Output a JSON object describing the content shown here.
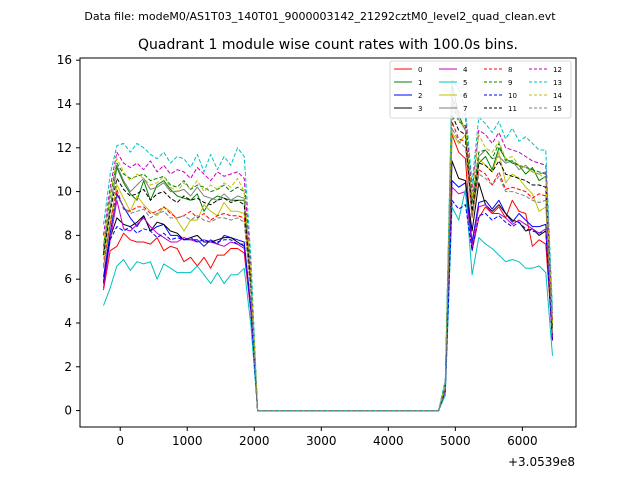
{
  "figure": {
    "suptitle": "Data file: modeM0/AS1T03_140T01_9000003142_21292cztM0_level2_quad_clean.evt"
  },
  "chart_data": {
    "type": "line",
    "title": "Quadrant 1 module wise count rates with 100.0s bins.",
    "xlabel": "",
    "ylabel": "",
    "x_offset_label": "+3.0539e8",
    "xlim": [
      -600,
      6800
    ],
    "ylim": [
      -0.75,
      16.1
    ],
    "xticks": [
      0,
      1000,
      2000,
      3000,
      4000,
      5000,
      6000
    ],
    "yticks": [
      0,
      2,
      4,
      6,
      8,
      10,
      12,
      14,
      16
    ],
    "grid": false,
    "legend": {
      "location": "upper right",
      "columns": 4
    },
    "x": [
      -250,
      -150,
      -50,
      50,
      150,
      250,
      350,
      450,
      550,
      650,
      750,
      850,
      950,
      1050,
      1150,
      1250,
      1350,
      1450,
      1550,
      1650,
      1750,
      1850,
      1950,
      2050,
      2150,
      4750,
      4850,
      4950,
      5050,
      5150,
      5250,
      5350,
      5450,
      5550,
      5650,
      5750,
      5850,
      5950,
      6050,
      6150,
      6250,
      6350,
      6450
    ],
    "series": [
      {
        "name": "0",
        "color": "#ff0000",
        "dash": false,
        "level": 7.6,
        "end": 3.3,
        "values": [
          5.5,
          7.3,
          7.5,
          8.1,
          7.8,
          7.7,
          7.7,
          7.6,
          7.9,
          7.3,
          7.5,
          7.4,
          6.8,
          7.0,
          6.6,
          7.0,
          6.5,
          7.1,
          7.1,
          7.4,
          7.4,
          7.2,
          4.5,
          0,
          0,
          0,
          1.0,
          12.6,
          11.8,
          11.5,
          7.3,
          8.8,
          9.3,
          9.0,
          9.3,
          8.8,
          9.6,
          9.1,
          9.0,
          7.5,
          7.8,
          7.6,
          3.3
        ]
      },
      {
        "name": "1",
        "color": "#008000",
        "dash": false,
        "level": 9.8,
        "end": 3.8,
        "values": [
          7.2,
          9.3,
          11.1,
          10.4,
          9.9,
          9.6,
          10.5,
          9.6,
          10.3,
          10.5,
          10.1,
          9.8,
          9.7,
          9.6,
          9.9,
          9.1,
          9.6,
          9.8,
          9.7,
          9.6,
          9.6,
          9.6,
          5.9,
          0,
          0,
          0,
          1.1,
          14.9,
          13.5,
          12.8,
          9.0,
          11.3,
          11.6,
          11.0,
          12.0,
          11.5,
          11.3,
          11.2,
          10.8,
          11.1,
          10.5,
          10.7,
          3.8
        ]
      },
      {
        "name": "2",
        "color": "#0000ff",
        "dash": false,
        "level": 8.4,
        "end": 3.2,
        "values": [
          6.1,
          8.1,
          9.9,
          9.3,
          8.8,
          8.4,
          8.9,
          8.2,
          8.4,
          8.5,
          8.0,
          8.0,
          7.8,
          7.8,
          7.8,
          7.5,
          7.8,
          7.6,
          8.0,
          7.9,
          7.8,
          7.7,
          4.7,
          0,
          0,
          0,
          0.9,
          10.5,
          10.2,
          10.4,
          7.7,
          9.5,
          9.6,
          9.2,
          9.6,
          9.0,
          8.6,
          9.0,
          8.7,
          8.4,
          8.4,
          8.5,
          3.2
        ]
      },
      {
        "name": "3",
        "color": "#000000",
        "dash": false,
        "level": 8.1,
        "end": 3.2,
        "values": [
          5.8,
          7.9,
          8.8,
          8.5,
          8.4,
          8.6,
          8.9,
          8.2,
          8.6,
          8.5,
          8.2,
          8.1,
          7.8,
          7.9,
          8.0,
          7.7,
          7.7,
          7.8,
          7.9,
          7.9,
          7.7,
          7.5,
          4.6,
          0,
          0,
          0,
          0.9,
          11.4,
          10.6,
          10.5,
          8.2,
          10.4,
          9.4,
          9.1,
          9.4,
          9.0,
          8.7,
          8.6,
          8.2,
          8.3,
          8.0,
          8.2,
          3.2
        ]
      },
      {
        "name": "4",
        "color": "#c000c0",
        "dash": false,
        "level": 8.2,
        "end": 3.3,
        "values": [
          5.6,
          7.8,
          9.6,
          8.3,
          8.2,
          8.5,
          8.8,
          8.4,
          8.1,
          7.9,
          7.7,
          7.7,
          7.9,
          7.8,
          7.7,
          7.8,
          7.7,
          7.6,
          7.5,
          7.7,
          7.6,
          7.4,
          4.5,
          0,
          0,
          0,
          0.9,
          10.2,
          9.9,
          10.0,
          7.5,
          9.3,
          9.4,
          9.0,
          9.0,
          8.8,
          8.5,
          8.7,
          8.5,
          8.3,
          8.1,
          8.3,
          3.3
        ]
      },
      {
        "name": "5",
        "color": "#00c0c0",
        "dash": false,
        "level": 6.3,
        "end": 2.5,
        "values": [
          4.8,
          5.6,
          6.6,
          6.9,
          6.4,
          6.8,
          6.7,
          6.8,
          6.0,
          6.7,
          6.5,
          6.3,
          6.3,
          6.3,
          6.6,
          6.2,
          5.8,
          6.3,
          5.8,
          6.2,
          6.2,
          6.5,
          3.9,
          0,
          0,
          0,
          0.7,
          9.3,
          8.7,
          10.1,
          6.2,
          7.9,
          7.6,
          7.4,
          7.1,
          6.8,
          6.9,
          6.8,
          6.5,
          6.5,
          6.6,
          6.3,
          2.5
        ]
      },
      {
        "name": "6",
        "color": "#c0c000",
        "dash": false,
        "level": 9.3,
        "end": 3.7,
        "values": [
          6.9,
          8.7,
          10.3,
          9.7,
          9.1,
          9.8,
          9.4,
          9.1,
          8.9,
          9.3,
          9.1,
          8.7,
          8.2,
          8.7,
          8.7,
          9.4,
          9.1,
          8.9,
          9.5,
          9.1,
          9.1,
          9.0,
          5.6,
          0,
          0,
          0,
          1.1,
          12.7,
          12.2,
          12.6,
          9.0,
          11.5,
          11.2,
          10.9,
          11.8,
          10.4,
          10.8,
          10.6,
          10.2,
          9.9,
          9.1,
          9.3,
          3.7
        ]
      },
      {
        "name": "7",
        "color": "#7f7f7f",
        "dash": false,
        "level": 9.9,
        "end": 3.8,
        "values": [
          7.3,
          9.3,
          11.2,
          10.5,
          10.0,
          10.3,
          10.6,
          10.1,
          10.2,
          10.4,
          10.0,
          10.0,
          10.1,
          9.8,
          10.2,
          9.8,
          9.7,
          9.6,
          9.9,
          9.6,
          9.8,
          9.7,
          5.9,
          0,
          0,
          0,
          1.2,
          14.3,
          13.3,
          12.8,
          9.5,
          11.6,
          11.9,
          11.5,
          11.6,
          11.3,
          11.4,
          11.0,
          11.2,
          10.9,
          10.8,
          10.9,
          3.8
        ]
      },
      {
        "name": "8",
        "color": "#ff0000",
        "dash": true,
        "level": 9.0,
        "end": 3.6,
        "values": [
          6.6,
          8.5,
          10.1,
          9.2,
          9.1,
          9.3,
          9.3,
          9.0,
          9.1,
          9.3,
          9.0,
          8.8,
          8.9,
          9.1,
          8.8,
          9.0,
          8.7,
          8.9,
          9.0,
          8.9,
          8.9,
          8.8,
          5.4,
          0,
          0,
          0,
          1.0,
          13.2,
          12.4,
          12.3,
          8.8,
          11.0,
          10.8,
          10.3,
          10.9,
          10.1,
          10.2,
          10.1,
          10.0,
          9.7,
          9.9,
          9.8,
          3.6
        ]
      },
      {
        "name": "9",
        "color": "#008000",
        "dash": true,
        "level": 10.2,
        "end": 4.0,
        "values": [
          7.5,
          9.8,
          11.3,
          10.8,
          10.6,
          10.7,
          10.8,
          10.5,
          10.6,
          10.7,
          10.3,
          10.2,
          10.5,
          10.1,
          10.3,
          10.2,
          10.0,
          10.1,
          10.3,
          10.0,
          10.2,
          10.0,
          6.1,
          0,
          0,
          0,
          1.2,
          14.0,
          13.2,
          13.0,
          9.5,
          11.8,
          11.9,
          11.5,
          12.2,
          11.4,
          11.4,
          11.2,
          11.1,
          11.0,
          10.9,
          10.8,
          4.0
        ]
      },
      {
        "name": "10",
        "color": "#0000ff",
        "dash": true,
        "level": 8.1,
        "end": 3.2,
        "values": [
          5.9,
          7.8,
          8.4,
          8.2,
          8.4,
          8.1,
          8.3,
          8.2,
          7.9,
          8.1,
          7.8,
          7.9,
          7.8,
          7.9,
          7.7,
          7.8,
          7.7,
          7.7,
          7.8,
          7.8,
          7.6,
          7.6,
          4.6,
          0,
          0,
          0,
          0.9,
          9.6,
          9.2,
          9.4,
          7.3,
          8.9,
          9.0,
          8.7,
          8.9,
          8.6,
          8.4,
          8.6,
          8.3,
          8.2,
          8.1,
          8.2,
          3.2
        ]
      },
      {
        "name": "11",
        "color": "#000000",
        "dash": true,
        "level": 9.6,
        "end": 3.8,
        "values": [
          7.1,
          9.1,
          10.6,
          10.1,
          9.8,
          9.9,
          10.1,
          9.6,
          9.9,
          10.0,
          9.7,
          9.5,
          9.8,
          9.6,
          9.7,
          9.5,
          9.4,
          9.6,
          9.7,
          9.5,
          9.6,
          9.4,
          5.8,
          0,
          0,
          0,
          1.1,
          13.5,
          12.8,
          12.6,
          9.1,
          11.3,
          11.2,
          10.9,
          11.4,
          10.8,
          10.7,
          10.6,
          10.5,
          10.3,
          10.3,
          10.2,
          3.8
        ]
      },
      {
        "name": "12",
        "color": "#c000c0",
        "dash": true,
        "level": 10.9,
        "end": 4.2,
        "values": [
          8.0,
          10.2,
          11.8,
          11.3,
          11.1,
          11.3,
          11.0,
          11.4,
          10.9,
          11.2,
          10.8,
          11.0,
          10.9,
          10.6,
          11.1,
          10.8,
          10.5,
          10.9,
          10.7,
          10.8,
          10.9,
          10.6,
          6.5,
          0,
          0,
          0,
          1.3,
          14.3,
          13.6,
          13.5,
          10.0,
          12.8,
          12.6,
          12.2,
          12.7,
          12.0,
          11.9,
          11.8,
          11.6,
          11.4,
          11.3,
          11.2,
          4.2
        ]
      },
      {
        "name": "13",
        "color": "#00c0c0",
        "dash": true,
        "level": 11.8,
        "end": 4.6,
        "values": [
          8.5,
          10.8,
          12.1,
          12.2,
          11.8,
          12.2,
          12.0,
          11.7,
          11.5,
          11.8,
          11.3,
          11.6,
          11.5,
          11.1,
          11.7,
          10.9,
          11.7,
          11.0,
          11.6,
          11.2,
          12.0,
          11.6,
          7.0,
          0,
          0,
          0,
          1.4,
          15.1,
          14.7,
          13.8,
          10.4,
          13.4,
          13.1,
          12.7,
          13.2,
          12.4,
          12.9,
          12.3,
          12.5,
          12.2,
          11.9,
          11.9,
          4.6
        ]
      },
      {
        "name": "14",
        "color": "#c0c000",
        "dash": true,
        "level": 10.3,
        "end": 4.0,
        "values": [
          7.6,
          9.9,
          11.5,
          10.9,
          10.5,
          10.8,
          10.6,
          10.3,
          10.4,
          10.7,
          10.2,
          10.0,
          10.4,
          10.1,
          10.5,
          10.0,
          10.3,
          10.1,
          10.4,
          10.2,
          10.6,
          10.0,
          6.2,
          0,
          0,
          0,
          1.2,
          14.2,
          13.3,
          12.9,
          9.7,
          12.6,
          12.0,
          11.8,
          12.3,
          11.5,
          11.6,
          11.2,
          11.1,
          10.9,
          10.8,
          10.6,
          4.0
        ]
      },
      {
        "name": "15",
        "color": "#7f7f7f",
        "dash": true,
        "level": 8.9,
        "end": 3.5,
        "values": [
          6.5,
          8.4,
          9.8,
          9.3,
          9.0,
          9.1,
          9.2,
          8.8,
          9.0,
          9.1,
          8.8,
          8.8,
          8.9,
          8.7,
          8.9,
          8.7,
          8.6,
          8.8,
          8.8,
          8.7,
          8.8,
          8.6,
          5.3,
          0,
          0,
          0,
          1.0,
          12.9,
          12.3,
          12.0,
          8.8,
          10.8,
          10.6,
          10.3,
          10.7,
          10.0,
          10.0,
          9.9,
          9.8,
          9.6,
          9.5,
          9.6,
          3.5
        ]
      }
    ]
  }
}
